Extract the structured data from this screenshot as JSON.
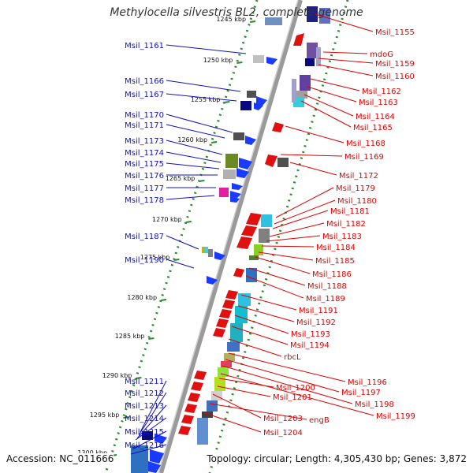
{
  "title": "Methylocella silvestris BL2, complete genome",
  "footer": {
    "accession": "Accession: NC_011666",
    "summary": "Topology: circular; Length: 4,305,430 bp; Genes: 3,872"
  },
  "colors": {
    "left_labels": "#1010c0",
    "right_labels": "#e00000",
    "dotted_ring": "#2a8a2a",
    "backbone": "#909090"
  },
  "scale": {
    "ticks": [
      "1245 kbp",
      "1250 kbp",
      "1255 kbp",
      "1260 kbp",
      "1265 kbp",
      "1270 kbp",
      "1275 kbp",
      "1280 kbp",
      "1285 kbp",
      "1290 kbp",
      "1295 kbp",
      "1300 kbp"
    ]
  },
  "left_genes": [
    "Msil_1161",
    "Msil_1166",
    "Msil_1167",
    "Msil_1170",
    "Msil_1171",
    "Msil_1173",
    "Msil_1174",
    "Msil_1175",
    "Msil_1176",
    "Msil_1177",
    "Msil_1178",
    "Msil_1187",
    "Msil_1190",
    "Msil_1211",
    "Msil_1212",
    "Msil_1213",
    "Msil_1214",
    "Msil_1215",
    "Msil_1216"
  ],
  "right_genes": [
    "Msil_1155",
    "mdoG",
    "Msil_1159",
    "Msil_1160",
    "Msil_1162",
    "Msil_1163",
    "Msil_1164",
    "Msil_1165",
    "Msil_1168",
    "Msil_1169",
    "Msil_1172",
    "Msil_1179",
    "Msil_1180",
    "Msil_1181",
    "Msil_1182",
    "Msil_1183",
    "Msil_1184",
    "Msil_1185",
    "Msil_1186",
    "Msil_1188",
    "Msil_1189",
    "Msil_1191",
    "Msil_1192",
    "Msil_1193",
    "Msil_1194",
    "rbcL",
    "Msil_1196",
    "Msil_1197",
    "Msil_1198",
    "Msil_1199",
    "Msil_1200",
    "Msil_1201",
    "Msil_1203",
    "engB",
    "Msil_1204"
  ]
}
